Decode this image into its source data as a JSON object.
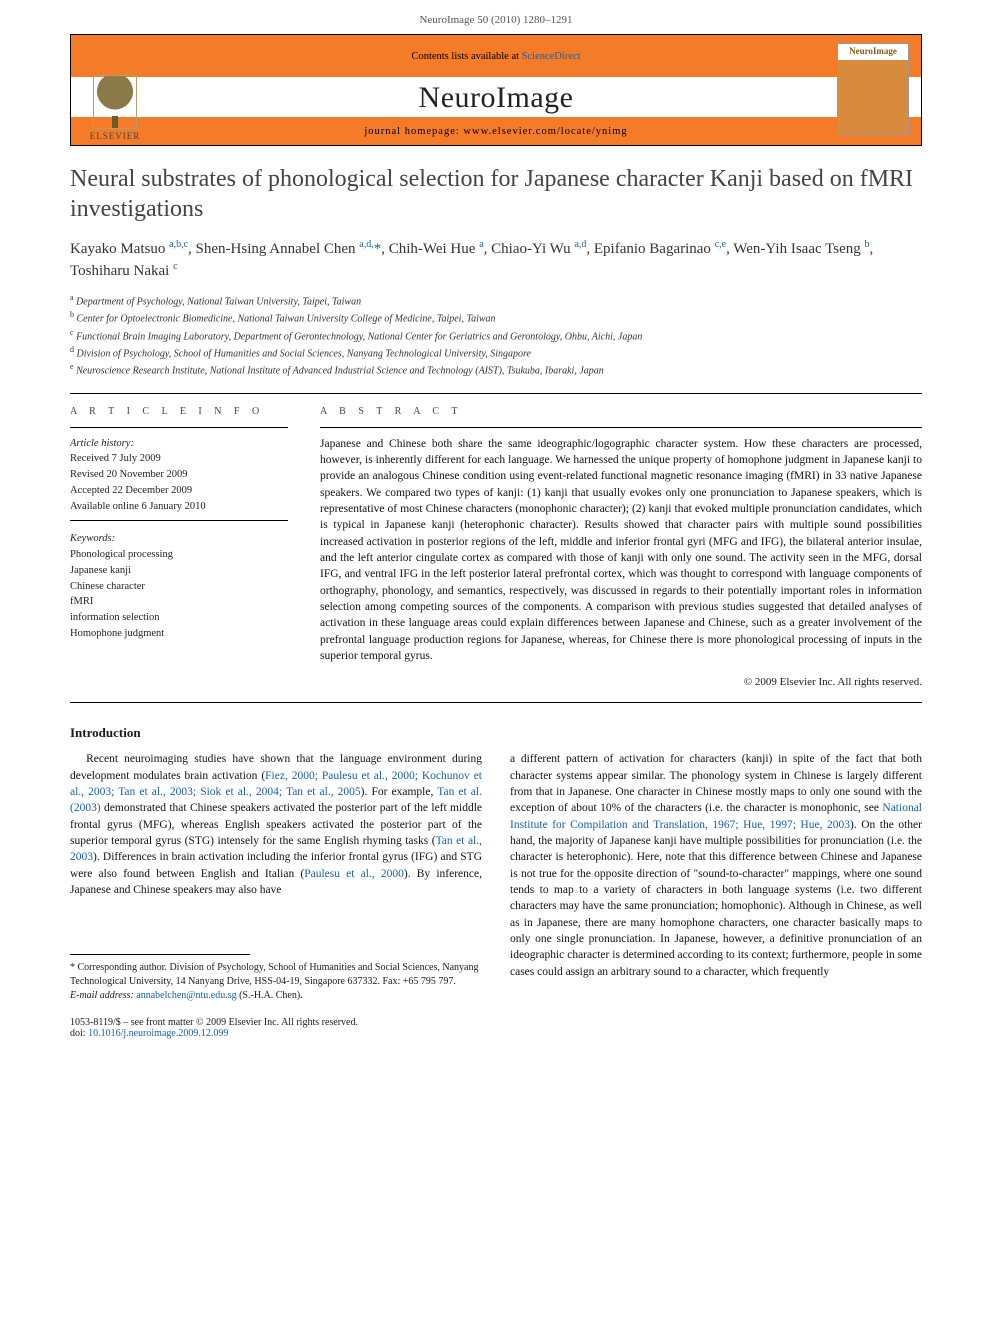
{
  "page_header": "NeuroImage 50 (2010) 1280–1291",
  "banner": {
    "contents_line_prefix": "Contents lists available at ",
    "contents_link": "ScienceDirect",
    "journal_name": "NeuroImage",
    "homepage_prefix": "journal homepage: ",
    "homepage_url": "www.elsevier.com/locate/ynimg",
    "elsevier_label": "ELSEVIER",
    "cover_label": "NeuroImage"
  },
  "title": "Neural substrates of phonological selection for Japanese character Kanji based on fMRI investigations",
  "authors_html": "Kayako Matsuo <sup>a,b,c</sup>, Shen-Hsing Annabel Chen <sup>a,d,</sup><span class='star'>*</span>, Chih-Wei Hue <sup>a</sup>, Chiao-Yi Wu <sup>a,d</sup>, Epifanio Bagarinao <sup>c,e</sup>, Wen-Yih Isaac Tseng <sup>b</sup>, Toshiharu Nakai <sup>c</sup>",
  "affiliations": [
    "a Department of Psychology, National Taiwan University, Taipei, Taiwan",
    "b Center for Optoelectronic Biomedicine, National Taiwan University College of Medicine, Taipei, Taiwan",
    "c Functional Brain Imaging Laboratory, Department of Gerontechnology, National Center for Geriatrics and Gerontology, Ohbu, Aichi, Japan",
    "d Division of Psychology, School of Humanities and Social Sciences, Nanyang Technological University, Singapore",
    "e Neuroscience Research Institute, National Institute of Advanced Industrial Science and Technology (AIST), Tsukuba, Ibaraki, Japan"
  ],
  "article_info_label": "A R T I C L E   I N F O",
  "abstract_label": "A B S T R A C T",
  "history_label": "Article history:",
  "history": [
    "Received 7 July 2009",
    "Revised 20 November 2009",
    "Accepted 22 December 2009",
    "Available online 6 January 2010"
  ],
  "keywords_label": "Keywords:",
  "keywords": [
    "Phonological processing",
    "Japanese kanji",
    "Chinese character",
    "fMRI",
    "information selection",
    "Homophone judgment"
  ],
  "abstract": "Japanese and Chinese both share the same ideographic/logographic character system. How these characters are processed, however, is inherently different for each language. We harnessed the unique property of homophone judgment in Japanese kanji to provide an analogous Chinese condition using event-related functional magnetic resonance imaging (fMRI) in 33 native Japanese speakers. We compared two types of kanji: (1) kanji that usually evokes only one pronunciation to Japanese speakers, which is representative of most Chinese characters (monophonic character); (2) kanji that evoked multiple pronunciation candidates, which is typical in Japanese kanji (heterophonic character). Results showed that character pairs with multiple sound possibilities increased activation in posterior regions of the left, middle and inferior frontal gyri (MFG and IFG), the bilateral anterior insulae, and the left anterior cingulate cortex as compared with those of kanji with only one sound. The activity seen in the MFG, dorsal IFG, and ventral IFG in the left posterior lateral prefrontal cortex, which was thought to correspond with language components of orthography, phonology, and semantics, respectively, was discussed in regards to their potentially important roles in information selection among competing sources of the components. A comparison with previous studies suggested that detailed analyses of activation in these language areas could explain differences between Japanese and Chinese, such as a greater involvement of the prefrontal language production regions for Japanese, whereas, for Chinese there is more phonological processing of inputs in the superior temporal gyrus.",
  "copyright": "© 2009 Elsevier Inc. All rights reserved.",
  "intro_heading": "Introduction",
  "intro_col1": "Recent neuroimaging studies have shown that the language environment during development modulates brain activation (<span class='cite'>Fiez, 2000; Paulesu et al., 2000; Kochunov et al., 2003; Tan et al., 2003; Siok et al., 2004; Tan et al., 2005</span>). For example, <span class='cite'>Tan et al. (2003)</span> demonstrated that Chinese speakers activated the posterior part of the left middle frontal gyrus (MFG), whereas English speakers activated the posterior part of the superior temporal gyrus (STG) intensely for the same English rhyming tasks (<span class='cite'>Tan et al., 2003</span>). Differences in brain activation including the inferior frontal gyrus (IFG) and STG were also found between English and Italian (<span class='cite'>Paulesu et al., 2000</span>). By inference, Japanese and Chinese speakers may also have",
  "intro_col2": "a different pattern of activation for characters (kanji) in spite of the fact that both character systems appear similar. The phonology system in Chinese is largely different from that in Japanese. One character in Chinese mostly maps to only one sound with the exception of about 10% of the characters (i.e. the character is monophonic, see <span class='cite'>National Institute for Compilation and Translation, 1967; Hue, 1997; Hue, 2003</span>). On the other hand, the majority of Japanese kanji have multiple possibilities for pronunciation (i.e. the character is heterophonic). Here, note that this difference between Chinese and Japanese is not true for the opposite direction of \"sound-to-character\" mappings, where one sound tends to map to a variety of characters in both language systems (i.e. two different characters may have the same pronunciation; homophonic). Although in Chinese, as well as in Japanese, there are many homophone characters, one character basically maps to only one single pronunciation. In Japanese, however, a definitive pronunciation of an ideographic character is determined according to its context; furthermore, people in some cases could assign an arbitrary sound to a character, which frequently",
  "foot": {
    "corr_label": "* Corresponding author. ",
    "corr_body": "Division of Psychology, School of Humanities and Social Sciences, Nanyang Technological University, 14 Nanyang Drive, HSS-04-19, Singapore 637332. Fax: +65 795 797.",
    "email_label": "E-mail address: ",
    "email": "annabelchen@ntu.edu.sg",
    "email_tail": " (S.-H.A. Chen).",
    "issn_line": "1053-8119/$ – see front matter © 2009 Elsevier Inc. All rights reserved.",
    "doi_prefix": "doi:",
    "doi": "10.1016/j.neuroimage.2009.12.099"
  },
  "colors": {
    "accent_orange": "#f47b27",
    "link_blue": "#1760a5",
    "text": "#1a1a1a",
    "rule": "#000000"
  }
}
